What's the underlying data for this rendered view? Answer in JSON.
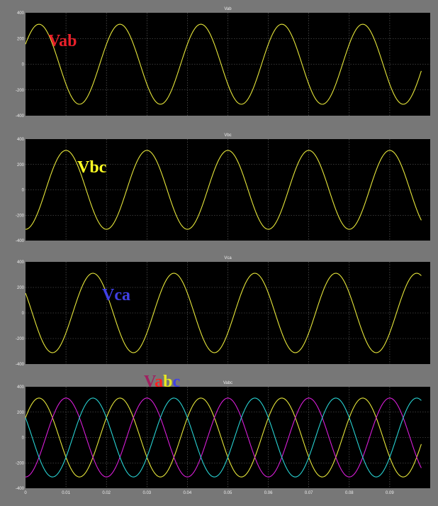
{
  "colors": {
    "plot_bg": "#000000",
    "window_bg": "#777777",
    "grid": "#6b6b6b",
    "trace_yellow": "#e6e63a",
    "trace_magenta": "#d81ed8",
    "trace_cyan": "#28d2d2",
    "label_red": "#e8202a",
    "label_yellow": "#ffff22",
    "label_blue": "#4040e6",
    "label_vabc_v": "#a02060",
    "label_vabc_a": "#ff2020",
    "label_vabc_b": "#e8e820",
    "label_vabc_c": "#4040e6"
  },
  "chart_data": [
    {
      "type": "line",
      "title": "Vab",
      "annotation": "Vab",
      "ylim": [
        -400,
        400
      ],
      "yticks": [
        "400",
        "200",
        "0",
        "-200",
        "-400"
      ],
      "xlim": [
        0,
        0.1
      ],
      "grid": true,
      "series": [
        {
          "color": "trace_yellow",
          "amplitude": 311,
          "frequency_hz": 50,
          "phase_deg": 30
        }
      ]
    },
    {
      "type": "line",
      "title": "Vbc",
      "annotation": "Vbc",
      "ylim": [
        -400,
        400
      ],
      "yticks": [
        "400",
        "200",
        "0",
        "-200",
        "-400"
      ],
      "xlim": [
        0,
        0.1
      ],
      "grid": true,
      "series": [
        {
          "color": "trace_yellow",
          "amplitude": 311,
          "frequency_hz": 50,
          "phase_deg": -90
        }
      ]
    },
    {
      "type": "line",
      "title": "Vca",
      "annotation": "Vca",
      "ylim": [
        -400,
        400
      ],
      "yticks": [
        "400",
        "200",
        "0",
        "-200",
        "-400"
      ],
      "xlim": [
        0,
        0.1
      ],
      "grid": true,
      "series": [
        {
          "color": "trace_yellow",
          "amplitude": 311,
          "frequency_hz": 50,
          "phase_deg": 150
        }
      ]
    },
    {
      "type": "line",
      "title": "Vabc",
      "annotation_parts": [
        "V",
        "a",
        "b",
        "c"
      ],
      "ylim": [
        -400,
        400
      ],
      "yticks": [
        "400",
        "200",
        "0",
        "-200",
        "-400"
      ],
      "xlim": [
        0,
        0.1
      ],
      "xticks": [
        "0",
        "0.01",
        "0.02",
        "0.03",
        "0.04",
        "0.05",
        "0.06",
        "0.07",
        "0.08",
        "0.09"
      ],
      "grid": true,
      "series": [
        {
          "color": "trace_yellow",
          "amplitude": 311,
          "frequency_hz": 50,
          "phase_deg": 30
        },
        {
          "color": "trace_magenta",
          "amplitude": 311,
          "frequency_hz": 50,
          "phase_deg": -90
        },
        {
          "color": "trace_cyan",
          "amplitude": 311,
          "frequency_hz": 50,
          "phase_deg": 150
        }
      ]
    }
  ]
}
